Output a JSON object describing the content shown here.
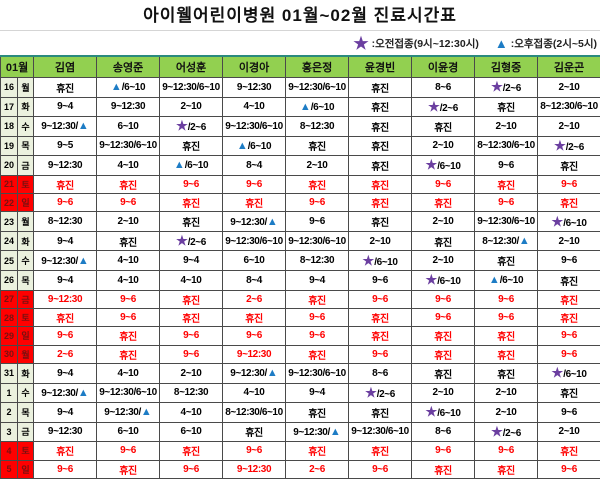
{
  "title": "아이웰어린이병원  01월~02월  진료시간표",
  "legend": {
    "morning": {
      "icon": "star",
      "label": ":오전접종(9시~12:30시)"
    },
    "afternoon": {
      "icon": "triangle",
      "label": ":오후접종(2시~5시)"
    }
  },
  "colors": {
    "header_green": "#92d050",
    "date_cell_green": "#ebf1de",
    "holiday_red": "#ff0000",
    "holiday_text_red": "#ff0000",
    "star_purple": "#6b3fa0",
    "triangle_blue": "#1d7cc5"
  },
  "table": {
    "month_label": "01월",
    "closed_label": "휴진",
    "doctors": [
      "김염",
      "송영준",
      "어성훈",
      "이경아",
      "홍은정",
      "윤경빈",
      "이윤경",
      "김형중",
      "김운곤"
    ],
    "rows": [
      {
        "date": "16",
        "day": "월",
        "holiday": false,
        "cells": [
          "휴진",
          "▲/6~10",
          "9~12:30/6~10",
          "9~12:30",
          "9~12:30/6~10",
          "휴진",
          "8~6",
          "★/2~6",
          "2~10"
        ]
      },
      {
        "date": "17",
        "day": "화",
        "holiday": false,
        "cells": [
          "9~4",
          "9~12:30",
          "2~10",
          "4~10",
          "▲/6~10",
          "휴진",
          "★/2~6",
          "휴진",
          "8~12:30/6~10"
        ]
      },
      {
        "date": "18",
        "day": "수",
        "holiday": false,
        "cells": [
          "9~12:30/▲",
          "6~10",
          "★/2~6",
          "9~12:30/6~10",
          "8~12:30",
          "휴진",
          "휴진",
          "2~10",
          "2~10"
        ]
      },
      {
        "date": "19",
        "day": "목",
        "holiday": false,
        "cells": [
          "9~5",
          "9~12:30/6~10",
          "휴진",
          "▲/6~10",
          "휴진",
          "휴진",
          "2~10",
          "8~12:30/6~10",
          "★/2~6"
        ]
      },
      {
        "date": "20",
        "day": "금",
        "holiday": false,
        "cells": [
          "9~12:30",
          "4~10",
          "▲/6~10",
          "8~4",
          "2~10",
          "휴진",
          "★/6~10",
          "9~6",
          "휴진"
        ]
      },
      {
        "date": "21",
        "day": "토",
        "holiday": true,
        "cells": [
          "휴진",
          "휴진",
          "9~6",
          "9~6",
          "휴진",
          "휴진",
          "9~6",
          "휴진",
          "9~6"
        ]
      },
      {
        "date": "22",
        "day": "일",
        "holiday": true,
        "cells": [
          "9~6",
          "9~6",
          "휴진",
          "휴진",
          "9~6",
          "휴진",
          "휴진",
          "9~6",
          "휴진"
        ]
      },
      {
        "date": "23",
        "day": "월",
        "holiday": false,
        "cells": [
          "8~12:30",
          "2~10",
          "휴진",
          "9~12:30/▲",
          "9~6",
          "휴진",
          "2~10",
          "9~12:30/6~10",
          "★/6~10"
        ]
      },
      {
        "date": "24",
        "day": "화",
        "holiday": false,
        "cells": [
          "9~4",
          "휴진",
          "★/2~6",
          "9~12:30/6~10",
          "9~12:30/6~10",
          "2~10",
          "휴진",
          "8~12:30/▲",
          "2~10"
        ]
      },
      {
        "date": "25",
        "day": "수",
        "holiday": false,
        "cells": [
          "9~12:30/▲",
          "4~10",
          "9~4",
          "6~10",
          "8~12:30",
          "★/6~10",
          "2~10",
          "휴진",
          "9~6"
        ]
      },
      {
        "date": "26",
        "day": "목",
        "holiday": false,
        "cells": [
          "9~4",
          "4~10",
          "4~10",
          "8~4",
          "9~4",
          "9~6",
          "★/6~10",
          "▲/6~10",
          "휴진"
        ]
      },
      {
        "date": "27",
        "day": "금",
        "holiday": true,
        "cells": [
          "9~12:30",
          "9~6",
          "휴진",
          "2~6",
          "휴진",
          "9~6",
          "9~6",
          "9~6",
          "휴진"
        ]
      },
      {
        "date": "28",
        "day": "토",
        "holiday": true,
        "cells": [
          "휴진",
          "9~6",
          "휴진",
          "휴진",
          "9~6",
          "휴진",
          "9~6",
          "9~6",
          "휴진"
        ]
      },
      {
        "date": "29",
        "day": "일",
        "holiday": true,
        "cells": [
          "9~6",
          "휴진",
          "9~6",
          "9~6",
          "9~6",
          "휴진",
          "휴진",
          "휴진",
          "9~6"
        ]
      },
      {
        "date": "30",
        "day": "월",
        "holiday": true,
        "cells": [
          "2~6",
          "휴진",
          "9~6",
          "9~12:30",
          "휴진",
          "9~6",
          "휴진",
          "휴진",
          "9~6"
        ]
      },
      {
        "date": "31",
        "day": "화",
        "holiday": false,
        "cells": [
          "9~4",
          "4~10",
          "2~10",
          "9~12:30/▲",
          "9~12:30/6~10",
          "8~6",
          "휴진",
          "휴진",
          "★/6~10"
        ]
      },
      {
        "date": "1",
        "day": "수",
        "holiday": false,
        "cells": [
          "9~12:30/▲",
          "9~12:30/6~10",
          "8~12:30",
          "4~10",
          "9~4",
          "★/2~6",
          "2~10",
          "2~10",
          "휴진"
        ]
      },
      {
        "date": "2",
        "day": "목",
        "holiday": false,
        "cells": [
          "9~4",
          "9~12:30/▲",
          "4~10",
          "8~12:30/6~10",
          "휴진",
          "휴진",
          "★/6~10",
          "2~10",
          "9~6"
        ]
      },
      {
        "date": "3",
        "day": "금",
        "holiday": false,
        "cells": [
          "9~12:30",
          "6~10",
          "6~10",
          "휴진",
          "9~12:30/▲",
          "9~12:30/6~10",
          "8~6",
          "★/2~6",
          "2~10"
        ]
      },
      {
        "date": "4",
        "day": "토",
        "holiday": true,
        "cells": [
          "휴진",
          "9~6",
          "휴진",
          "9~6",
          "휴진",
          "휴진",
          "9~6",
          "9~6",
          "휴진"
        ]
      },
      {
        "date": "5",
        "day": "일",
        "holiday": true,
        "cells": [
          "9~6",
          "휴진",
          "9~6",
          "9~12:30",
          "2~6",
          "9~6",
          "휴진",
          "휴진",
          "9~6"
        ]
      }
    ]
  }
}
